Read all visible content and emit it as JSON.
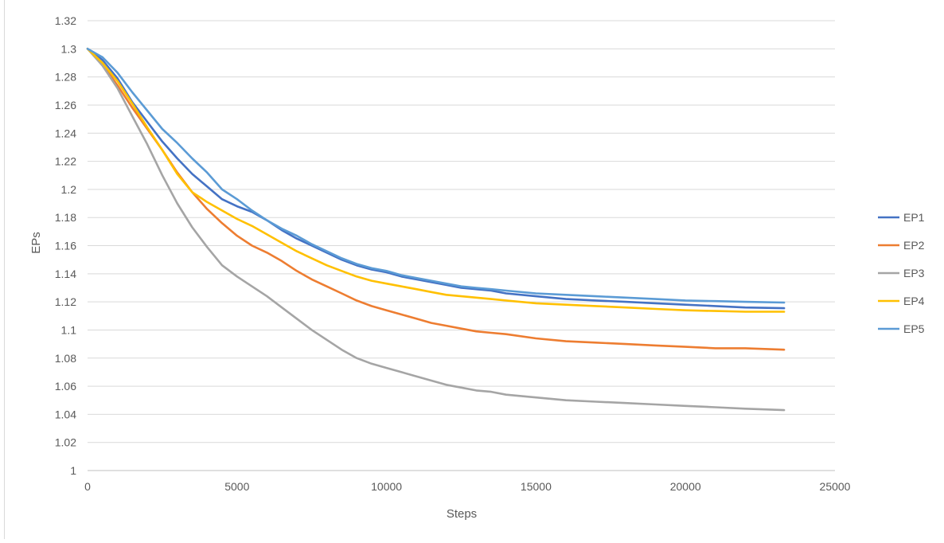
{
  "chart_data": {
    "type": "line",
    "title": "",
    "xlabel": "Steps",
    "ylabel": "EPs",
    "xlim": [
      0,
      25000
    ],
    "ylim": [
      1,
      1.32
    ],
    "xticks": [
      0,
      5000,
      10000,
      15000,
      20000,
      25000
    ],
    "xtick_labels": [
      "0",
      "5000",
      "10000",
      "15000",
      "20000",
      "25000"
    ],
    "yticks": [
      1,
      1.02,
      1.04,
      1.06,
      1.08,
      1.1,
      1.12,
      1.14,
      1.16,
      1.18,
      1.2,
      1.22,
      1.24,
      1.26,
      1.28,
      1.3,
      1.32
    ],
    "ytick_labels": [
      "1",
      "1.02",
      "1.04",
      "1.06",
      "1.08",
      "1.1",
      "1.12",
      "1.14",
      "1.16",
      "1.18",
      "1.2",
      "1.22",
      "1.24",
      "1.26",
      "1.28",
      "1.3",
      "1.32"
    ],
    "grid": "horizontal",
    "legend_position": "right",
    "x": [
      0,
      500,
      1000,
      1500,
      2000,
      2500,
      3000,
      3500,
      4000,
      4500,
      5000,
      5500,
      6000,
      6500,
      7000,
      7500,
      8000,
      8500,
      9000,
      9500,
      10000,
      10500,
      11000,
      11500,
      12000,
      12500,
      13000,
      13500,
      14000,
      15000,
      16000,
      17000,
      18000,
      19000,
      20000,
      21000,
      22000,
      23300
    ],
    "series": [
      {
        "name": "EP1",
        "color": "#4472C4",
        "values": [
          1.3,
          1.292,
          1.279,
          1.262,
          1.248,
          1.234,
          1.222,
          1.211,
          1.202,
          1.193,
          1.188,
          1.184,
          1.178,
          1.171,
          1.165,
          1.16,
          1.155,
          1.15,
          1.146,
          1.143,
          1.141,
          1.138,
          1.136,
          1.134,
          1.132,
          1.13,
          1.129,
          1.128,
          1.126,
          1.124,
          1.122,
          1.121,
          1.12,
          1.119,
          1.118,
          1.117,
          1.116,
          1.1155
        ]
      },
      {
        "name": "EP2",
        "color": "#ED7D31",
        "values": [
          1.3,
          1.289,
          1.274,
          1.258,
          1.243,
          1.228,
          1.212,
          1.198,
          1.186,
          1.176,
          1.167,
          1.16,
          1.155,
          1.149,
          1.142,
          1.136,
          1.131,
          1.126,
          1.121,
          1.117,
          1.114,
          1.111,
          1.108,
          1.105,
          1.103,
          1.101,
          1.099,
          1.098,
          1.097,
          1.094,
          1.092,
          1.091,
          1.09,
          1.089,
          1.088,
          1.087,
          1.087,
          1.086
        ]
      },
      {
        "name": "EP3",
        "color": "#A5A5A5",
        "values": [
          1.3,
          1.288,
          1.272,
          1.252,
          1.232,
          1.21,
          1.19,
          1.173,
          1.159,
          1.146,
          1.138,
          1.131,
          1.124,
          1.116,
          1.108,
          1.1,
          1.093,
          1.086,
          1.08,
          1.076,
          1.073,
          1.07,
          1.067,
          1.064,
          1.061,
          1.059,
          1.057,
          1.056,
          1.054,
          1.052,
          1.05,
          1.049,
          1.048,
          1.047,
          1.046,
          1.045,
          1.044,
          1.043
        ]
      },
      {
        "name": "EP4",
        "color": "#FFC000",
        "values": [
          1.3,
          1.29,
          1.277,
          1.261,
          1.244,
          1.228,
          1.211,
          1.198,
          1.191,
          1.185,
          1.179,
          1.174,
          1.168,
          1.162,
          1.156,
          1.151,
          1.146,
          1.142,
          1.138,
          1.135,
          1.133,
          1.131,
          1.129,
          1.127,
          1.125,
          1.124,
          1.123,
          1.122,
          1.121,
          1.119,
          1.118,
          1.117,
          1.116,
          1.115,
          1.114,
          1.1135,
          1.113,
          1.113
        ]
      },
      {
        "name": "EP5",
        "color": "#5B9BD5",
        "values": [
          1.3,
          1.294,
          1.283,
          1.269,
          1.256,
          1.243,
          1.233,
          1.222,
          1.212,
          1.2,
          1.193,
          1.185,
          1.178,
          1.172,
          1.167,
          1.161,
          1.156,
          1.151,
          1.147,
          1.144,
          1.142,
          1.139,
          1.137,
          1.135,
          1.133,
          1.131,
          1.13,
          1.129,
          1.128,
          1.126,
          1.125,
          1.124,
          1.123,
          1.122,
          1.121,
          1.1205,
          1.12,
          1.1195
        ]
      }
    ]
  }
}
